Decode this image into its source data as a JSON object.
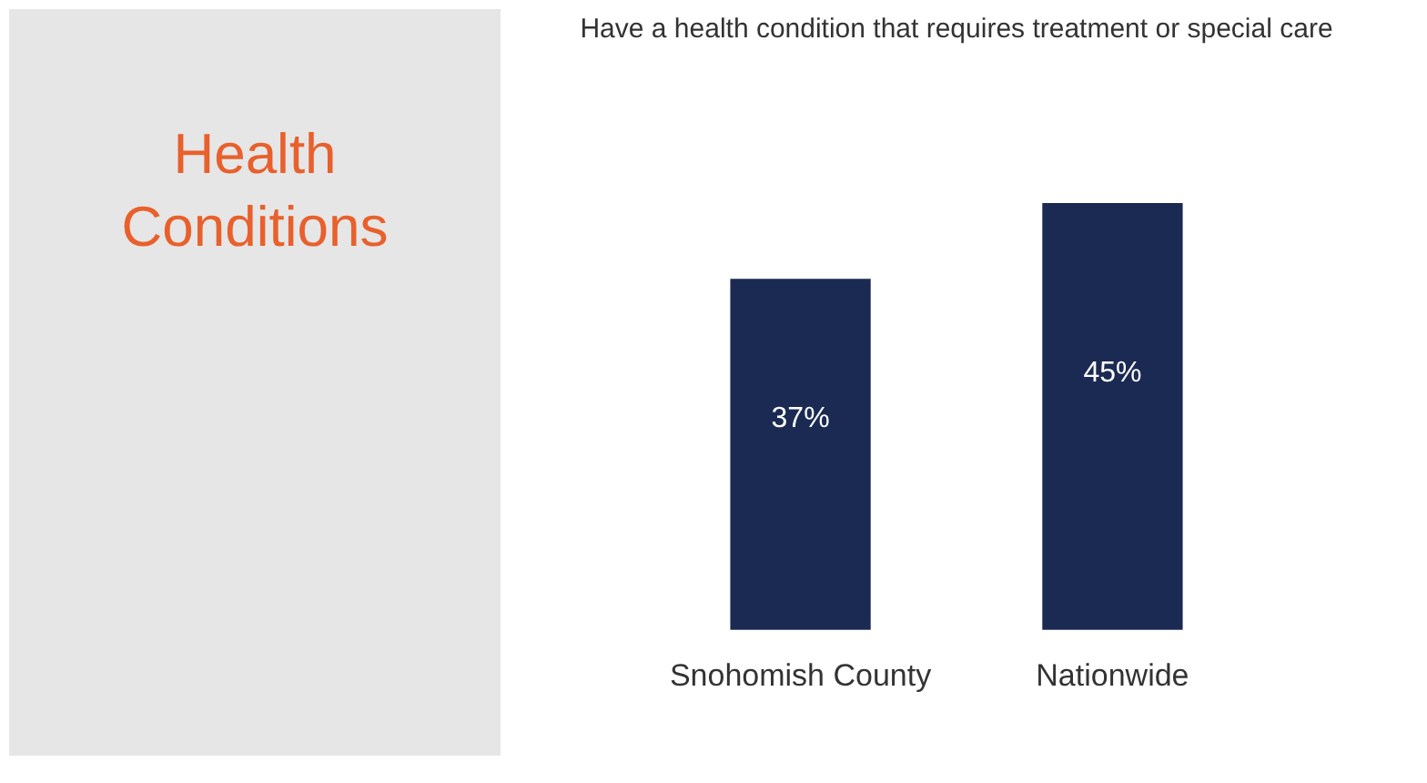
{
  "chart_data": {
    "type": "bar",
    "title": "Health Conditions",
    "subtitle": "Have a health condition that requires treatment or special care",
    "categories": [
      "Snohomish County",
      "Nationwide"
    ],
    "values": [
      37,
      45
    ],
    "color": "#1b2a52",
    "data_labels": true,
    "value_labels": [
      "37%",
      "45%"
    ],
    "grid": false
  }
}
